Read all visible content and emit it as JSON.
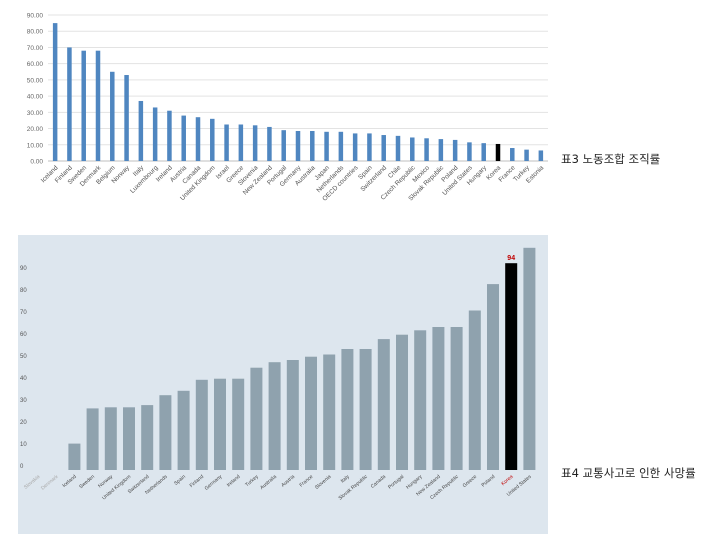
{
  "captions": {
    "chart1": "표3 노동조합 조직률",
    "chart2": "표4 교통사고로 인한 사망률"
  },
  "chart_data": [
    {
      "type": "bar",
      "title": "",
      "xlabel": "",
      "ylabel": "",
      "ylim": [
        0,
        90
      ],
      "yticks": [
        "0.00",
        "10.00",
        "20.00",
        "30.00",
        "40.00",
        "50.00",
        "60.00",
        "70.00",
        "80.00",
        "90.00"
      ],
      "grid": true,
      "bar_color": "#4f86c0",
      "highlight_color": "#000000",
      "highlight_category": "Korea",
      "categories": [
        "Iceland",
        "Finland",
        "Sweden",
        "Denmark",
        "Belgium",
        "Norway",
        "Italy",
        "Luxembourg",
        "Ireland",
        "Austria",
        "Canada",
        "United Kingdom",
        "Israel",
        "Greece",
        "Slovenia",
        "New Zealand",
        "Portugal",
        "Germany",
        "Australia",
        "Japan",
        "Netherlands",
        "OECD countries",
        "Spain",
        "Switzerland",
        "Chile",
        "Czech Republic",
        "Mexico",
        "Slovak Republic",
        "Poland",
        "United States",
        "Hungary",
        "Korea",
        "France",
        "Turkey",
        "Estonia"
      ],
      "values": [
        85,
        70,
        68,
        68,
        55,
        53,
        37,
        33,
        31,
        28,
        27,
        26,
        22.5,
        22.5,
        22,
        21,
        19,
        18.5,
        18.5,
        18,
        18,
        17,
        17,
        16,
        15.5,
        14.5,
        14,
        13.5,
        13,
        11.5,
        11,
        10.5,
        8,
        7,
        6.5
      ]
    },
    {
      "type": "bar",
      "title": "",
      "xlabel": "",
      "ylabel": "",
      "ylim": [
        0,
        100
      ],
      "yticks": [
        "0",
        "10",
        "20",
        "30",
        "40",
        "50",
        "60",
        "70",
        "80",
        "90"
      ],
      "grid": false,
      "bar_color": "#8fa2ae",
      "highlight_color": "#000000",
      "highlight_category": "Korea",
      "highlight_label": "94",
      "label_color": "#c00000",
      "background": "#dde6ee",
      "categories": [
        "Slovakia",
        "Denmark",
        "Iceland",
        "Sweden",
        "Norway",
        "United Kingdom",
        "Switzerland",
        "Netherlands",
        "Spain",
        "Finland",
        "Germany",
        "Ireland",
        "Turkey",
        "Australia",
        "Austria",
        "France",
        "Slovenia",
        "Italy",
        "Slovak Republic",
        "Canada",
        "Portugal",
        "Hungary",
        "New Zealand",
        "Czech Republic",
        "Greece",
        "Poland",
        "Korea",
        "United States"
      ],
      "muted_categories": [
        "Slovakia",
        "Denmark"
      ],
      "values": [
        0,
        0,
        12,
        28,
        28.5,
        28.5,
        29.5,
        34,
        36,
        41,
        41.5,
        41.5,
        46.5,
        49,
        50,
        51.5,
        52.5,
        55,
        55,
        59.5,
        61.5,
        63.5,
        65,
        65,
        72.5,
        84.5,
        94,
        101
      ]
    }
  ]
}
